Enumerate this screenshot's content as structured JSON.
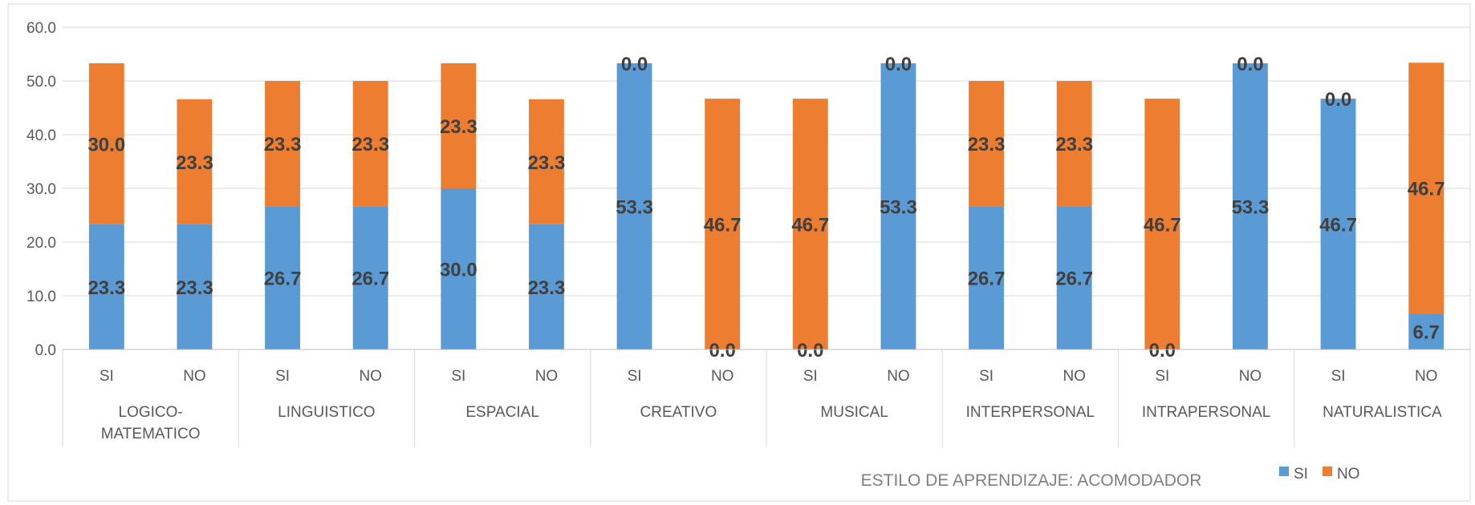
{
  "chart_data": {
    "type": "bar",
    "stacked": true,
    "title": "ESTILO DE APRENDIZAJE: ACOMODADOR",
    "xlabel": "",
    "ylabel": "",
    "ylim": [
      0,
      60
    ],
    "yticks": [
      "0.0",
      "10.0",
      "20.0",
      "30.0",
      "40.0",
      "50.0",
      "60.0"
    ],
    "grid": true,
    "legend_position": "bottom-right",
    "groups": [
      "LOGICO-MATEMATICO",
      "LINGUISTICO",
      "ESPACIAL",
      "CREATIVO",
      "MUSICAL",
      "INTERPERSONAL",
      "INTRAPERSONAL",
      "NATURALISTICA"
    ],
    "categories": [
      "SI",
      "NO",
      "SI",
      "NO",
      "SI",
      "NO",
      "SI",
      "NO",
      "SI",
      "NO",
      "SI",
      "NO",
      "SI",
      "NO",
      "SI",
      "NO"
    ],
    "series": [
      {
        "name": "SI",
        "color": "#5B9BD5",
        "values": [
          23.3,
          23.3,
          26.7,
          26.7,
          30.0,
          23.3,
          53.3,
          0.0,
          0.0,
          53.3,
          26.7,
          26.7,
          0.0,
          53.3,
          46.7,
          6.7
        ]
      },
      {
        "name": "NO",
        "color": "#ED7D31",
        "values": [
          30.0,
          23.3,
          23.3,
          23.3,
          23.3,
          23.3,
          0.0,
          46.7,
          46.7,
          0.0,
          23.3,
          23.3,
          46.7,
          0.0,
          0.0,
          46.7
        ]
      }
    ]
  }
}
